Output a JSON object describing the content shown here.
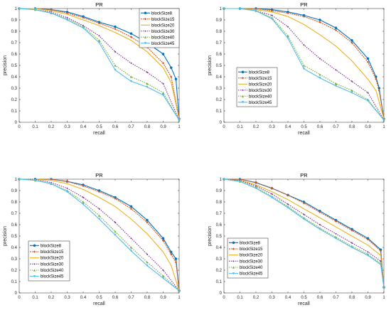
{
  "chart_data": [
    {
      "type": "line",
      "title": "PR",
      "xlabel": "recall",
      "ylabel": "precision",
      "xlim": [
        0,
        1
      ],
      "ylim": [
        0,
        1
      ],
      "xticks": [
        "0",
        "0.1",
        "0.2",
        "0.3",
        "0.4",
        "0.5",
        "0.6",
        "0.7",
        "0.8",
        "0.9",
        "1"
      ],
      "yticks": [
        "0",
        "0.1",
        "0.2",
        "0.3",
        "0.4",
        "0.5",
        "0.6",
        "0.7",
        "0.8",
        "0.9",
        "1"
      ],
      "legend_position": "top-right",
      "series": [
        {
          "name": "blockSize8",
          "color": "#0072BD",
          "x": [
            0,
            0.1,
            0.2,
            0.3,
            0.4,
            0.5,
            0.6,
            0.7,
            0.8,
            0.9,
            0.95,
            0.98,
            1
          ],
          "y": [
            1,
            1,
            0.99,
            0.97,
            0.93,
            0.88,
            0.84,
            0.78,
            0.7,
            0.6,
            0.48,
            0.38,
            0.03
          ]
        },
        {
          "name": "blockSize15",
          "color": "#D95319",
          "x": [
            0,
            0.1,
            0.2,
            0.3,
            0.4,
            0.5,
            0.6,
            0.7,
            0.8,
            0.9,
            0.95,
            1
          ],
          "y": [
            1,
            1,
            0.99,
            0.96,
            0.92,
            0.87,
            0.82,
            0.75,
            0.66,
            0.52,
            0.4,
            0.03
          ]
        },
        {
          "name": "blockSize20",
          "color": "#EDB120",
          "x": [
            0,
            0.1,
            0.2,
            0.3,
            0.4,
            0.5,
            0.6,
            0.7,
            0.8,
            0.9,
            0.95,
            1
          ],
          "y": [
            1,
            1,
            0.98,
            0.95,
            0.9,
            0.85,
            0.79,
            0.72,
            0.62,
            0.48,
            0.35,
            0.03
          ]
        },
        {
          "name": "blockSize30",
          "color": "#7E2F8E",
          "x": [
            0,
            0.1,
            0.2,
            0.3,
            0.4,
            0.5,
            0.6,
            0.7,
            0.8,
            0.9,
            1
          ],
          "y": [
            1,
            0.99,
            0.97,
            0.92,
            0.85,
            0.76,
            0.62,
            0.52,
            0.44,
            0.34,
            0.02
          ]
        },
        {
          "name": "blockSize40",
          "color": "#77AC30",
          "x": [
            0,
            0.1,
            0.2,
            0.3,
            0.4,
            0.5,
            0.6,
            0.7,
            0.8,
            0.9,
            1
          ],
          "y": [
            1,
            0.99,
            0.96,
            0.91,
            0.84,
            0.72,
            0.5,
            0.4,
            0.34,
            0.26,
            0.02
          ]
        },
        {
          "name": "blockSize45",
          "color": "#4DBEEE",
          "x": [
            0,
            0.1,
            0.2,
            0.3,
            0.4,
            0.5,
            0.6,
            0.7,
            0.8,
            0.9,
            1
          ],
          "y": [
            1,
            0.99,
            0.96,
            0.9,
            0.83,
            0.7,
            0.46,
            0.36,
            0.31,
            0.24,
            0.02
          ]
        }
      ]
    },
    {
      "type": "line",
      "title": "PR",
      "xlabel": "recall",
      "ylabel": "precision",
      "xlim": [
        0,
        1
      ],
      "ylim": [
        0,
        1
      ],
      "xticks": [
        "0",
        "0.1",
        "0.2",
        "0.3",
        "0.4",
        "0.5",
        "0.6",
        "0.7",
        "0.8",
        "0.9",
        "1"
      ],
      "yticks": [
        "0",
        "0.1",
        "0.2",
        "0.3",
        "0.4",
        "0.5",
        "0.6",
        "0.7",
        "0.8",
        "0.9",
        "1"
      ],
      "legend_position": "middle-left",
      "series": [
        {
          "name": "blockSize8",
          "color": "#0072BD",
          "x": [
            0,
            0.1,
            0.2,
            0.3,
            0.4,
            0.5,
            0.6,
            0.7,
            0.8,
            0.9,
            0.95,
            0.97,
            1
          ],
          "y": [
            1,
            1,
            1,
            0.99,
            0.97,
            0.94,
            0.9,
            0.83,
            0.72,
            0.56,
            0.4,
            0.3,
            0.03
          ]
        },
        {
          "name": "blockSize15",
          "color": "#D95319",
          "x": [
            0,
            0.1,
            0.2,
            0.3,
            0.4,
            0.5,
            0.6,
            0.7,
            0.8,
            0.9,
            0.95,
            0.97,
            1
          ],
          "y": [
            1,
            1,
            1,
            0.98,
            0.96,
            0.93,
            0.88,
            0.81,
            0.7,
            0.53,
            0.38,
            0.28,
            0.03
          ]
        },
        {
          "name": "blockSize20",
          "color": "#EDB120",
          "x": [
            0,
            0.1,
            0.2,
            0.3,
            0.4,
            0.5,
            0.6,
            0.7,
            0.8,
            0.9,
            0.95,
            1
          ],
          "y": [
            1,
            1,
            0.99,
            0.97,
            0.93,
            0.86,
            0.77,
            0.67,
            0.54,
            0.38,
            0.28,
            0.03
          ]
        },
        {
          "name": "blockSize30",
          "color": "#7E2F8E",
          "x": [
            0,
            0.1,
            0.2,
            0.3,
            0.4,
            0.5,
            0.6,
            0.7,
            0.8,
            0.9,
            1
          ],
          "y": [
            1,
            1,
            0.98,
            0.94,
            0.84,
            0.68,
            0.56,
            0.46,
            0.36,
            0.26,
            0.02
          ]
        },
        {
          "name": "blockSize40",
          "color": "#77AC30",
          "x": [
            0,
            0.1,
            0.2,
            0.3,
            0.4,
            0.5,
            0.6,
            0.7,
            0.8,
            0.9,
            1
          ],
          "y": [
            1,
            1,
            0.98,
            0.92,
            0.76,
            0.5,
            0.42,
            0.34,
            0.28,
            0.2,
            0.02
          ]
        },
        {
          "name": "blockSize45",
          "color": "#4DBEEE",
          "x": [
            0,
            0.1,
            0.2,
            0.3,
            0.4,
            0.5,
            0.6,
            0.7,
            0.8,
            0.9,
            1
          ],
          "y": [
            1,
            1,
            0.98,
            0.91,
            0.74,
            0.47,
            0.39,
            0.32,
            0.26,
            0.19,
            0.02
          ]
        }
      ]
    },
    {
      "type": "line",
      "title": "PR",
      "xlabel": "recall",
      "ylabel": "precision",
      "xlim": [
        0,
        1
      ],
      "ylim": [
        0,
        1
      ],
      "xticks": [
        "0",
        "0.1",
        "0.2",
        "0.3",
        "0.4",
        "0.5",
        "0.6",
        "0.7",
        "0.8",
        "0.9",
        "1"
      ],
      "yticks": [
        "0",
        "0.1",
        "0.2",
        "0.3",
        "0.4",
        "0.5",
        "0.6",
        "0.7",
        "0.8",
        "0.9",
        "1"
      ],
      "legend_position": "lower-left",
      "series": [
        {
          "name": "blockSize8",
          "color": "#0072BD",
          "x": [
            0,
            0.1,
            0.2,
            0.3,
            0.4,
            0.5,
            0.6,
            0.7,
            0.8,
            0.9,
            0.95,
            0.98,
            1
          ],
          "y": [
            1,
            1,
            1,
            0.98,
            0.95,
            0.9,
            0.84,
            0.76,
            0.64,
            0.48,
            0.36,
            0.3,
            0.02
          ]
        },
        {
          "name": "blockSize15",
          "color": "#D95319",
          "x": [
            0,
            0.1,
            0.2,
            0.3,
            0.4,
            0.5,
            0.6,
            0.7,
            0.8,
            0.9,
            0.95,
            0.98,
            1
          ],
          "y": [
            1,
            1,
            1,
            0.98,
            0.94,
            0.89,
            0.83,
            0.74,
            0.62,
            0.46,
            0.34,
            0.27,
            0.02
          ]
        },
        {
          "name": "blockSize20",
          "color": "#EDB120",
          "x": [
            0,
            0.1,
            0.2,
            0.3,
            0.4,
            0.5,
            0.6,
            0.7,
            0.8,
            0.9,
            0.95,
            1
          ],
          "y": [
            1,
            1,
            0.99,
            0.96,
            0.91,
            0.84,
            0.76,
            0.65,
            0.52,
            0.36,
            0.24,
            0.02
          ]
        },
        {
          "name": "blockSize30",
          "color": "#7E2F8E",
          "x": [
            0,
            0.1,
            0.2,
            0.3,
            0.4,
            0.5,
            0.6,
            0.7,
            0.8,
            0.9,
            1
          ],
          "y": [
            1,
            1,
            0.97,
            0.92,
            0.84,
            0.74,
            0.62,
            0.48,
            0.34,
            0.2,
            0.02
          ]
        },
        {
          "name": "blockSize40",
          "color": "#77AC30",
          "x": [
            0,
            0.1,
            0.2,
            0.3,
            0.4,
            0.5,
            0.6,
            0.7,
            0.8,
            0.9,
            1
          ],
          "y": [
            1,
            0.99,
            0.96,
            0.9,
            0.8,
            0.68,
            0.54,
            0.4,
            0.27,
            0.15,
            0.02
          ]
        },
        {
          "name": "blockSize45",
          "color": "#4DBEEE",
          "x": [
            0,
            0.1,
            0.2,
            0.3,
            0.4,
            0.5,
            0.6,
            0.7,
            0.8,
            0.9,
            1
          ],
          "y": [
            1,
            0.99,
            0.96,
            0.89,
            0.78,
            0.65,
            0.51,
            0.37,
            0.24,
            0.13,
            0.02
          ]
        }
      ]
    },
    {
      "type": "line",
      "title": "PR",
      "xlabel": "recall",
      "ylabel": "precision",
      "xlim": [
        0,
        1
      ],
      "ylim": [
        0,
        1
      ],
      "xticks": [
        "0",
        "0.1",
        "0.2",
        "0.3",
        "0.4",
        "0.5",
        "0.6",
        "0.7",
        "0.8",
        "0.9",
        "1"
      ],
      "yticks": [
        "0",
        "0.1",
        "0.2",
        "0.3",
        "0.4",
        "0.5",
        "0.6",
        "0.7",
        "0.8",
        "0.9",
        "1"
      ],
      "legend_position": "lower-left",
      "series": [
        {
          "name": "blockSize8",
          "color": "#0072BD",
          "x": [
            0,
            0.1,
            0.2,
            0.3,
            0.4,
            0.5,
            0.6,
            0.7,
            0.8,
            0.9,
            0.98,
            1
          ],
          "y": [
            1,
            1,
            0.97,
            0.92,
            0.86,
            0.8,
            0.72,
            0.64,
            0.56,
            0.48,
            0.38,
            0.05
          ]
        },
        {
          "name": "blockSize15",
          "color": "#D95319",
          "x": [
            0,
            0.1,
            0.2,
            0.3,
            0.4,
            0.5,
            0.6,
            0.7,
            0.8,
            0.9,
            0.98,
            1
          ],
          "y": [
            1,
            1,
            0.97,
            0.92,
            0.86,
            0.79,
            0.71,
            0.63,
            0.55,
            0.47,
            0.37,
            0.05
          ]
        },
        {
          "name": "blockSize20",
          "color": "#EDB120",
          "x": [
            0,
            0.1,
            0.2,
            0.3,
            0.4,
            0.5,
            0.6,
            0.7,
            0.8,
            0.9,
            0.98,
            1
          ],
          "y": [
            1,
            0.99,
            0.95,
            0.89,
            0.82,
            0.74,
            0.66,
            0.58,
            0.5,
            0.42,
            0.33,
            0.05
          ]
        },
        {
          "name": "blockSize30",
          "color": "#7E2F8E",
          "x": [
            0,
            0.1,
            0.2,
            0.3,
            0.4,
            0.5,
            0.6,
            0.7,
            0.8,
            0.9,
            0.98,
            1
          ],
          "y": [
            1,
            0.99,
            0.94,
            0.87,
            0.78,
            0.69,
            0.6,
            0.52,
            0.44,
            0.36,
            0.28,
            0.05
          ]
        },
        {
          "name": "blockSize40",
          "color": "#77AC30",
          "x": [
            0,
            0.1,
            0.2,
            0.3,
            0.4,
            0.5,
            0.6,
            0.7,
            0.8,
            0.9,
            0.98,
            1
          ],
          "y": [
            1,
            0.98,
            0.93,
            0.85,
            0.76,
            0.66,
            0.57,
            0.49,
            0.41,
            0.34,
            0.26,
            0.05
          ]
        },
        {
          "name": "blockSize45",
          "color": "#4DBEEE",
          "x": [
            0,
            0.1,
            0.2,
            0.3,
            0.4,
            0.5,
            0.6,
            0.7,
            0.8,
            0.9,
            0.98,
            1
          ],
          "y": [
            1,
            0.98,
            0.92,
            0.84,
            0.75,
            0.65,
            0.56,
            0.48,
            0.4,
            0.33,
            0.25,
            0.05
          ]
        }
      ]
    }
  ]
}
